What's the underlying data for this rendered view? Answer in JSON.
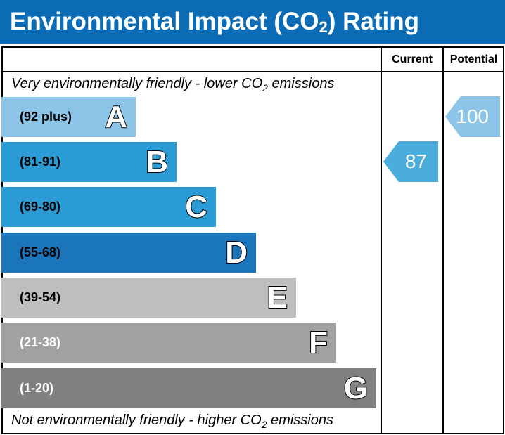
{
  "title": {
    "main": "Environmental Impact (CO",
    "sub": "2",
    "end": ") Rating"
  },
  "chart_data": {
    "type": "bar",
    "columns": {
      "current": "Current",
      "potential": "Potential"
    },
    "top_note": {
      "pre": "Very environmentally friendly - lower CO",
      "sub": "2",
      "post": " emissions"
    },
    "bottom_note": {
      "pre": "Not environmentally friendly - higher CO",
      "sub": "2",
      "post": " emissions"
    },
    "bands": [
      {
        "letter": "A",
        "range": "(92 plus)",
        "color": "#8cc5e8",
        "text_color": "#000000"
      },
      {
        "letter": "B",
        "range": "(81-91)",
        "color": "#2a9bd5",
        "text_color": "#000000"
      },
      {
        "letter": "C",
        "range": "(69-80)",
        "color": "#2a9bd5",
        "text_color": "#000000"
      },
      {
        "letter": "D",
        "range": "(55-68)",
        "color": "#1a75bb",
        "text_color": "#000000"
      },
      {
        "letter": "E",
        "range": "(39-54)",
        "color": "#bfbebc",
        "text_color": "#000000"
      },
      {
        "letter": "F",
        "range": "(21-38)",
        "color": "#a0a1a3",
        "text_color": "#ffffff"
      },
      {
        "letter": "G",
        "range": "(1-20)",
        "color": "#808080",
        "text_color": "#ffffff"
      }
    ],
    "current": {
      "value": "87",
      "band": "B",
      "color": "#4aaddc"
    },
    "potential": {
      "value": "100",
      "band": "A",
      "color": "#8cc5e8"
    }
  }
}
